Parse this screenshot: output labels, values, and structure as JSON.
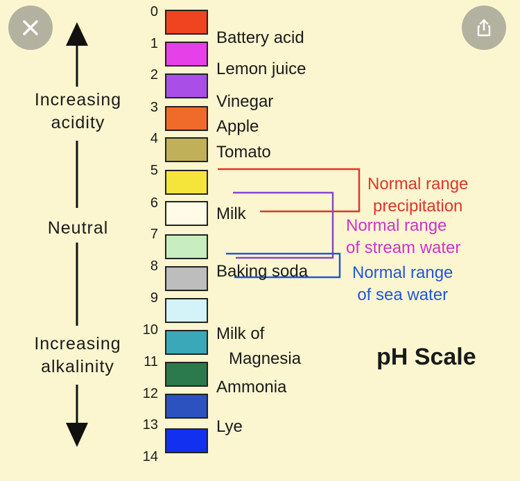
{
  "title": "pH Scale",
  "side_labels": {
    "acidity": [
      "Increasing",
      "acidity"
    ],
    "neutral": "Neutral",
    "alkalinity": [
      "Increasing",
      "alkalinity"
    ]
  },
  "scale": [
    {
      "num": "0",
      "color": "#f0431f"
    },
    {
      "num": "1",
      "color": "#e640e8"
    },
    {
      "num": "2",
      "color": "#a94fe8"
    },
    {
      "num": "3",
      "color": "#f06a2a"
    },
    {
      "num": "4",
      "color": "#c0b05a"
    },
    {
      "num": "5",
      "color": "#f5e53a"
    },
    {
      "num": "6",
      "color": "#fffbe6"
    },
    {
      "num": "7",
      "color": "#c8edc0"
    },
    {
      "num": "8",
      "color": "#bdbdbd"
    },
    {
      "num": "9",
      "color": "#d4f3f8"
    },
    {
      "num": "10",
      "color": "#3aa8b8"
    },
    {
      "num": "11",
      "color": "#2a7a4e"
    },
    {
      "num": "12",
      "color": "#2c52c0"
    },
    {
      "num": "13",
      "color": "#1230f0"
    },
    {
      "num": "14",
      "color": ""
    }
  ],
  "substances": [
    "Battery acid",
    "Lemon juice",
    "Vinegar",
    "Apple",
    "Tomato",
    "Milk",
    "Baking soda",
    "Milk of",
    "Magnesia",
    "Ammonia",
    "Lye"
  ],
  "ranges": {
    "precipitation": [
      "Normal range",
      "precipitation"
    ],
    "stream": [
      "Normal range",
      "of stream water"
    ],
    "sea": [
      "Normal range",
      "of sea water"
    ]
  },
  "colors": {
    "precipitation": "#e0342a",
    "stream": "#cc33cc",
    "sea": "#2255dd",
    "background": "#fbf6cf"
  },
  "icons": {
    "close": "close-icon",
    "share": "share-icon"
  }
}
